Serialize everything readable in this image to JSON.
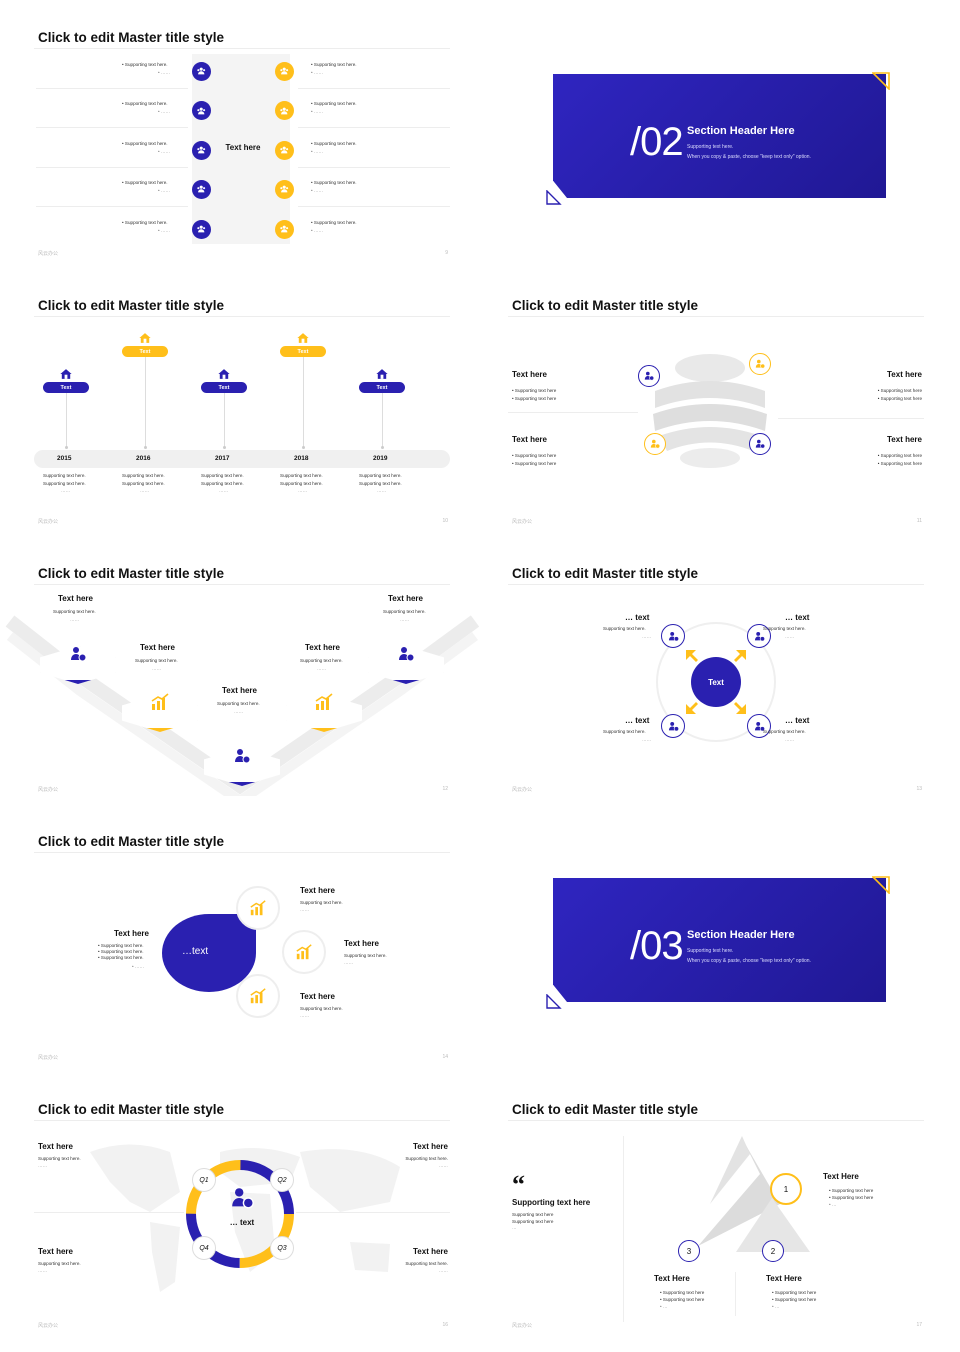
{
  "slides": {
    "s9": {
      "title": "Click to edit Master title style",
      "center": "Text here",
      "sup": "Supporting text here.",
      "dots": "……",
      "footer": "风云办公",
      "page": "9"
    },
    "s10s": {
      "num": "/02",
      "header": "Section Header Here",
      "sub1": "Supporting text here.",
      "sub2": "When you copy & paste, choose \"keep text only\" option."
    },
    "s10": {
      "title": "Click to edit Master title style",
      "pill": "Text",
      "years": [
        "2015",
        "2016",
        "2017",
        "2018",
        "2019"
      ],
      "sup": "Supporting text here.",
      "dots": "……",
      "footer": "风云办公",
      "page": "10"
    },
    "s11": {
      "title": "Click to edit Master title style",
      "heading": "Text here",
      "sup": "Supporting text here",
      "footer": "风云办公",
      "page": "11"
    },
    "s12": {
      "title": "Click to edit Master title style",
      "heading": "Text here",
      "sup": "Supporting text here.",
      "dots": "……",
      "footer": "风云办公",
      "page": "12"
    },
    "s13": {
      "title": "Click to edit Master title style",
      "center": "Text",
      "heading": "… text",
      "sup": "Supporting text here.",
      "dots": "……",
      "footer": "风云办公",
      "page": "13"
    },
    "s14": {
      "title": "Click to edit Master title style",
      "center": "…text",
      "heading": "Text here",
      "sup": "Supporting text here.",
      "dots": "……",
      "footer": "风云办公",
      "page": "14"
    },
    "s15s": {
      "num": "/03",
      "header": "Section Header Here",
      "sub1": "Supporting text here.",
      "sub2": "When you copy & paste, choose \"keep text only\" option."
    },
    "s16": {
      "title": "Click to edit Master title style",
      "center": "… text",
      "q": [
        "Q1",
        "Q2",
        "Q3",
        "Q4"
      ],
      "heading": "Text here",
      "sup": "Supporting text here.",
      "dots": "……",
      "footer": "风云办公",
      "page": "16"
    },
    "s17": {
      "title": "Click to edit Master title style",
      "quote": "Supporting text here",
      "quote_sup": "Supporting text here",
      "heading": "Text Here",
      "sup": "Supporting text here",
      "dots": "…",
      "nums": [
        "1",
        "2",
        "3"
      ],
      "footer": "风云办公",
      "page": "17"
    }
  },
  "colors": {
    "blue": "#2a20b0",
    "yellow": "#ffbf1a",
    "grey": "#e6e6e6"
  }
}
